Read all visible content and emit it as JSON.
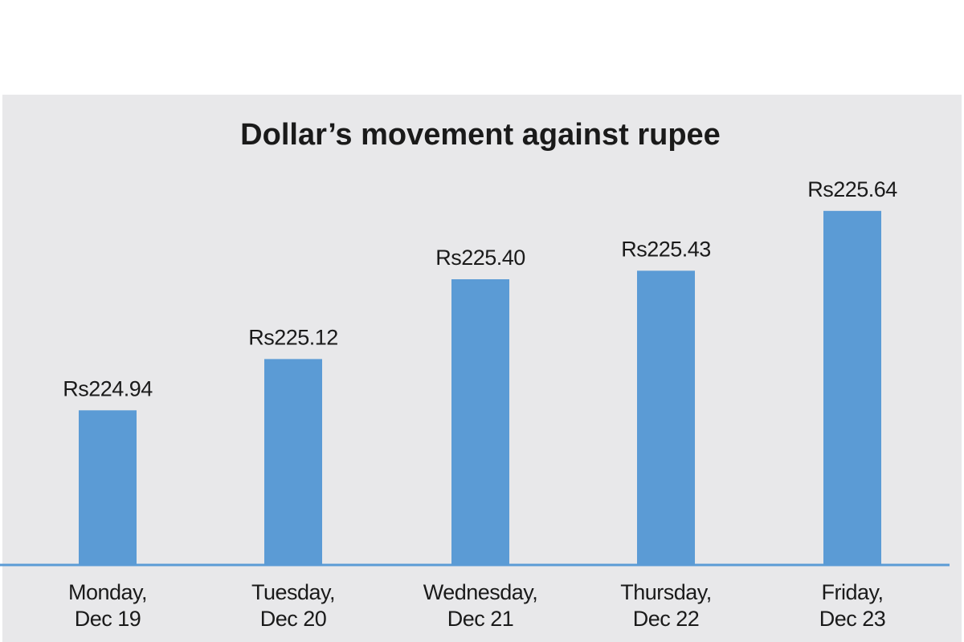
{
  "chart_data": {
    "type": "bar",
    "title": "Dollar’s movement against rupee",
    "categories": [
      [
        "Monday,",
        "Dec 19"
      ],
      [
        "Tuesday,",
        "Dec 20"
      ],
      [
        "Wednesday,",
        "Dec 21"
      ],
      [
        "Thursday,",
        "Dec 22"
      ],
      [
        "Friday,",
        "Dec 23"
      ]
    ],
    "values": [
      224.94,
      225.12,
      225.4,
      225.43,
      225.64
    ],
    "value_labels": [
      "Rs224.94",
      "Rs225.12",
      "Rs225.40",
      "Rs225.43",
      "Rs225.64"
    ],
    "color": "#5b9bd5",
    "ylim": [
      224.4,
      225.8
    ]
  }
}
